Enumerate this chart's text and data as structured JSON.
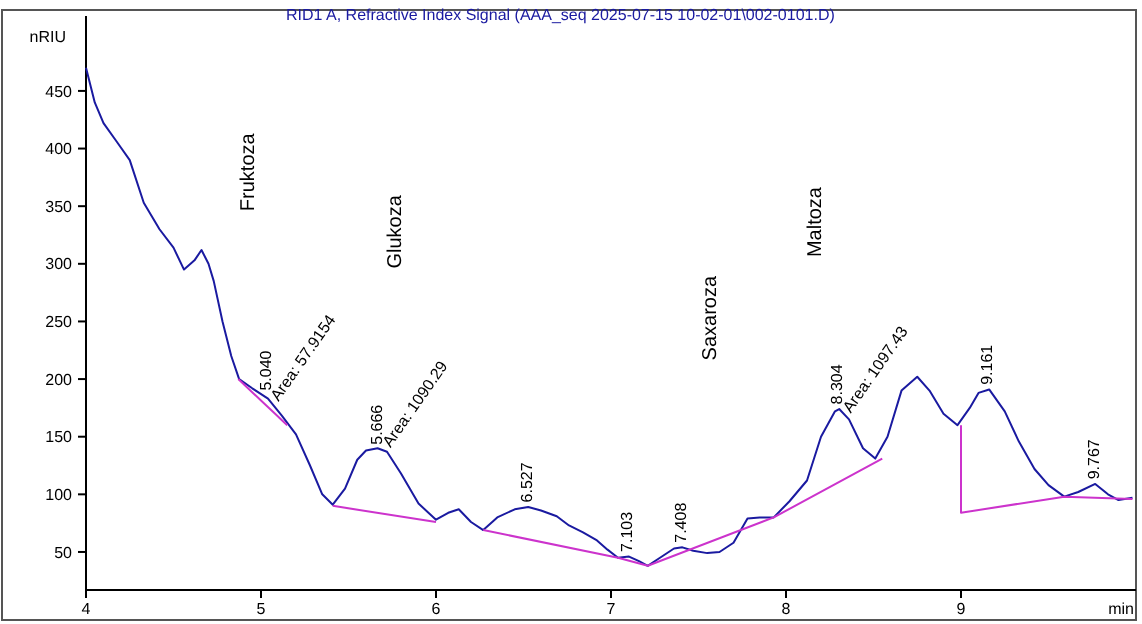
{
  "chart_data": {
    "type": "line",
    "title": "RID1 A, Refractive Index Signal (AAA_seq 2025-07-15 10-02-01\\002-0101.D)",
    "ylabel": "nRIU",
    "xlabel": "min",
    "xlim": [
      4,
      10
    ],
    "ylim": [
      17,
      515
    ],
    "xticks": [
      4,
      5,
      6,
      7,
      8,
      9
    ],
    "yticks": [
      50,
      100,
      150,
      200,
      250,
      300,
      350,
      400,
      450
    ],
    "grid": false,
    "series": [
      {
        "color": "#1a1aa0",
        "x": [
          4,
          4.05,
          4.1,
          4.18,
          4.25,
          4.33,
          4.42,
          4.5,
          4.56,
          4.62,
          4.66,
          4.7,
          4.73,
          4.78,
          4.83,
          4.875,
          4.95,
          5.04,
          5.12,
          5.2,
          5.28,
          5.35,
          5.41,
          5.48,
          5.55,
          5.6,
          5.666,
          5.72,
          5.8,
          5.9,
          6,
          6.07,
          6.13,
          6.2,
          6.27,
          6.35,
          6.45,
          6.527,
          6.6,
          6.69,
          6.76,
          6.84,
          6.92,
          6.98,
          7.04,
          7.103,
          7.16,
          7.21,
          7.28,
          7.36,
          7.408,
          7.47,
          7.55,
          7.62,
          7.7,
          7.78,
          7.85,
          7.93,
          8.02,
          8.12,
          8.2,
          8.28,
          8.304,
          8.36,
          8.44,
          8.51,
          8.58,
          8.66,
          8.75,
          8.82,
          8.9,
          8.98,
          9.05,
          9.1,
          9.161,
          9.25,
          9.33,
          9.42,
          9.5,
          9.59,
          9.67,
          9.767,
          9.84,
          9.9,
          9.98
        ],
        "values": [
          470,
          440,
          422,
          405,
          390,
          353,
          330,
          314,
          295,
          303,
          312,
          300,
          285,
          250,
          220,
          200,
          192,
          183,
          168,
          152,
          125,
          100,
          91,
          105,
          130,
          138,
          140,
          137,
          118,
          92,
          78,
          84,
          87,
          76,
          69,
          80,
          87,
          89,
          86,
          81,
          73,
          67,
          60,
          52,
          45,
          46,
          42,
          38,
          45,
          53,
          54,
          51,
          49,
          50,
          58,
          79,
          80,
          80,
          94,
          112,
          150,
          172,
          174,
          165,
          140,
          131,
          150,
          190,
          202,
          190,
          170,
          160,
          175,
          188,
          191,
          172,
          146,
          122,
          108,
          98,
          102,
          109,
          100,
          95,
          97
        ]
      },
      {
        "color": "#cc33cc",
        "x": [
          4.87,
          5.15
        ],
        "values": [
          200,
          160
        ]
      },
      {
        "color": "#cc33cc",
        "x": [
          5.41,
          6
        ],
        "values": [
          90,
          76
        ]
      },
      {
        "color": "#cc33cc",
        "x": [
          6.27,
          7.04,
          7.21,
          7.93,
          8.55
        ],
        "values": [
          69,
          45,
          38,
          80,
          131
        ]
      },
      {
        "color": "#cc33cc",
        "x": [
          9,
          9,
          9.59,
          9.98
        ],
        "values": [
          160,
          84,
          98,
          96
        ]
      }
    ],
    "annotations": [
      "Fruktoza",
      "Glukoza",
      "Saxaroza",
      "Maltoza",
      {
        "text": "5.040",
        "x": 5.06,
        "y": 190
      },
      {
        "text": "Area: 57.9154",
        "x": 5.1,
        "y": 180
      },
      {
        "text": "5.666",
        "x": 5.69,
        "y": 143
      },
      {
        "text": "Area: 1090.29",
        "x": 5.74,
        "y": 140
      },
      {
        "text": "6.527",
        "x": 6.55,
        "y": 93
      },
      {
        "text": "7.103",
        "x": 7.12,
        "y": 50
      },
      {
        "text": "7.408",
        "x": 7.43,
        "y": 58
      },
      {
        "text": "8.304",
        "x": 8.32,
        "y": 178
      },
      {
        "text": "Area: 1097.43",
        "x": 8.37,
        "y": 170
      },
      {
        "text": "9.161",
        "x": 9.18,
        "y": 195
      },
      {
        "text": "9.767",
        "x": 9.79,
        "y": 113
      }
    ]
  }
}
